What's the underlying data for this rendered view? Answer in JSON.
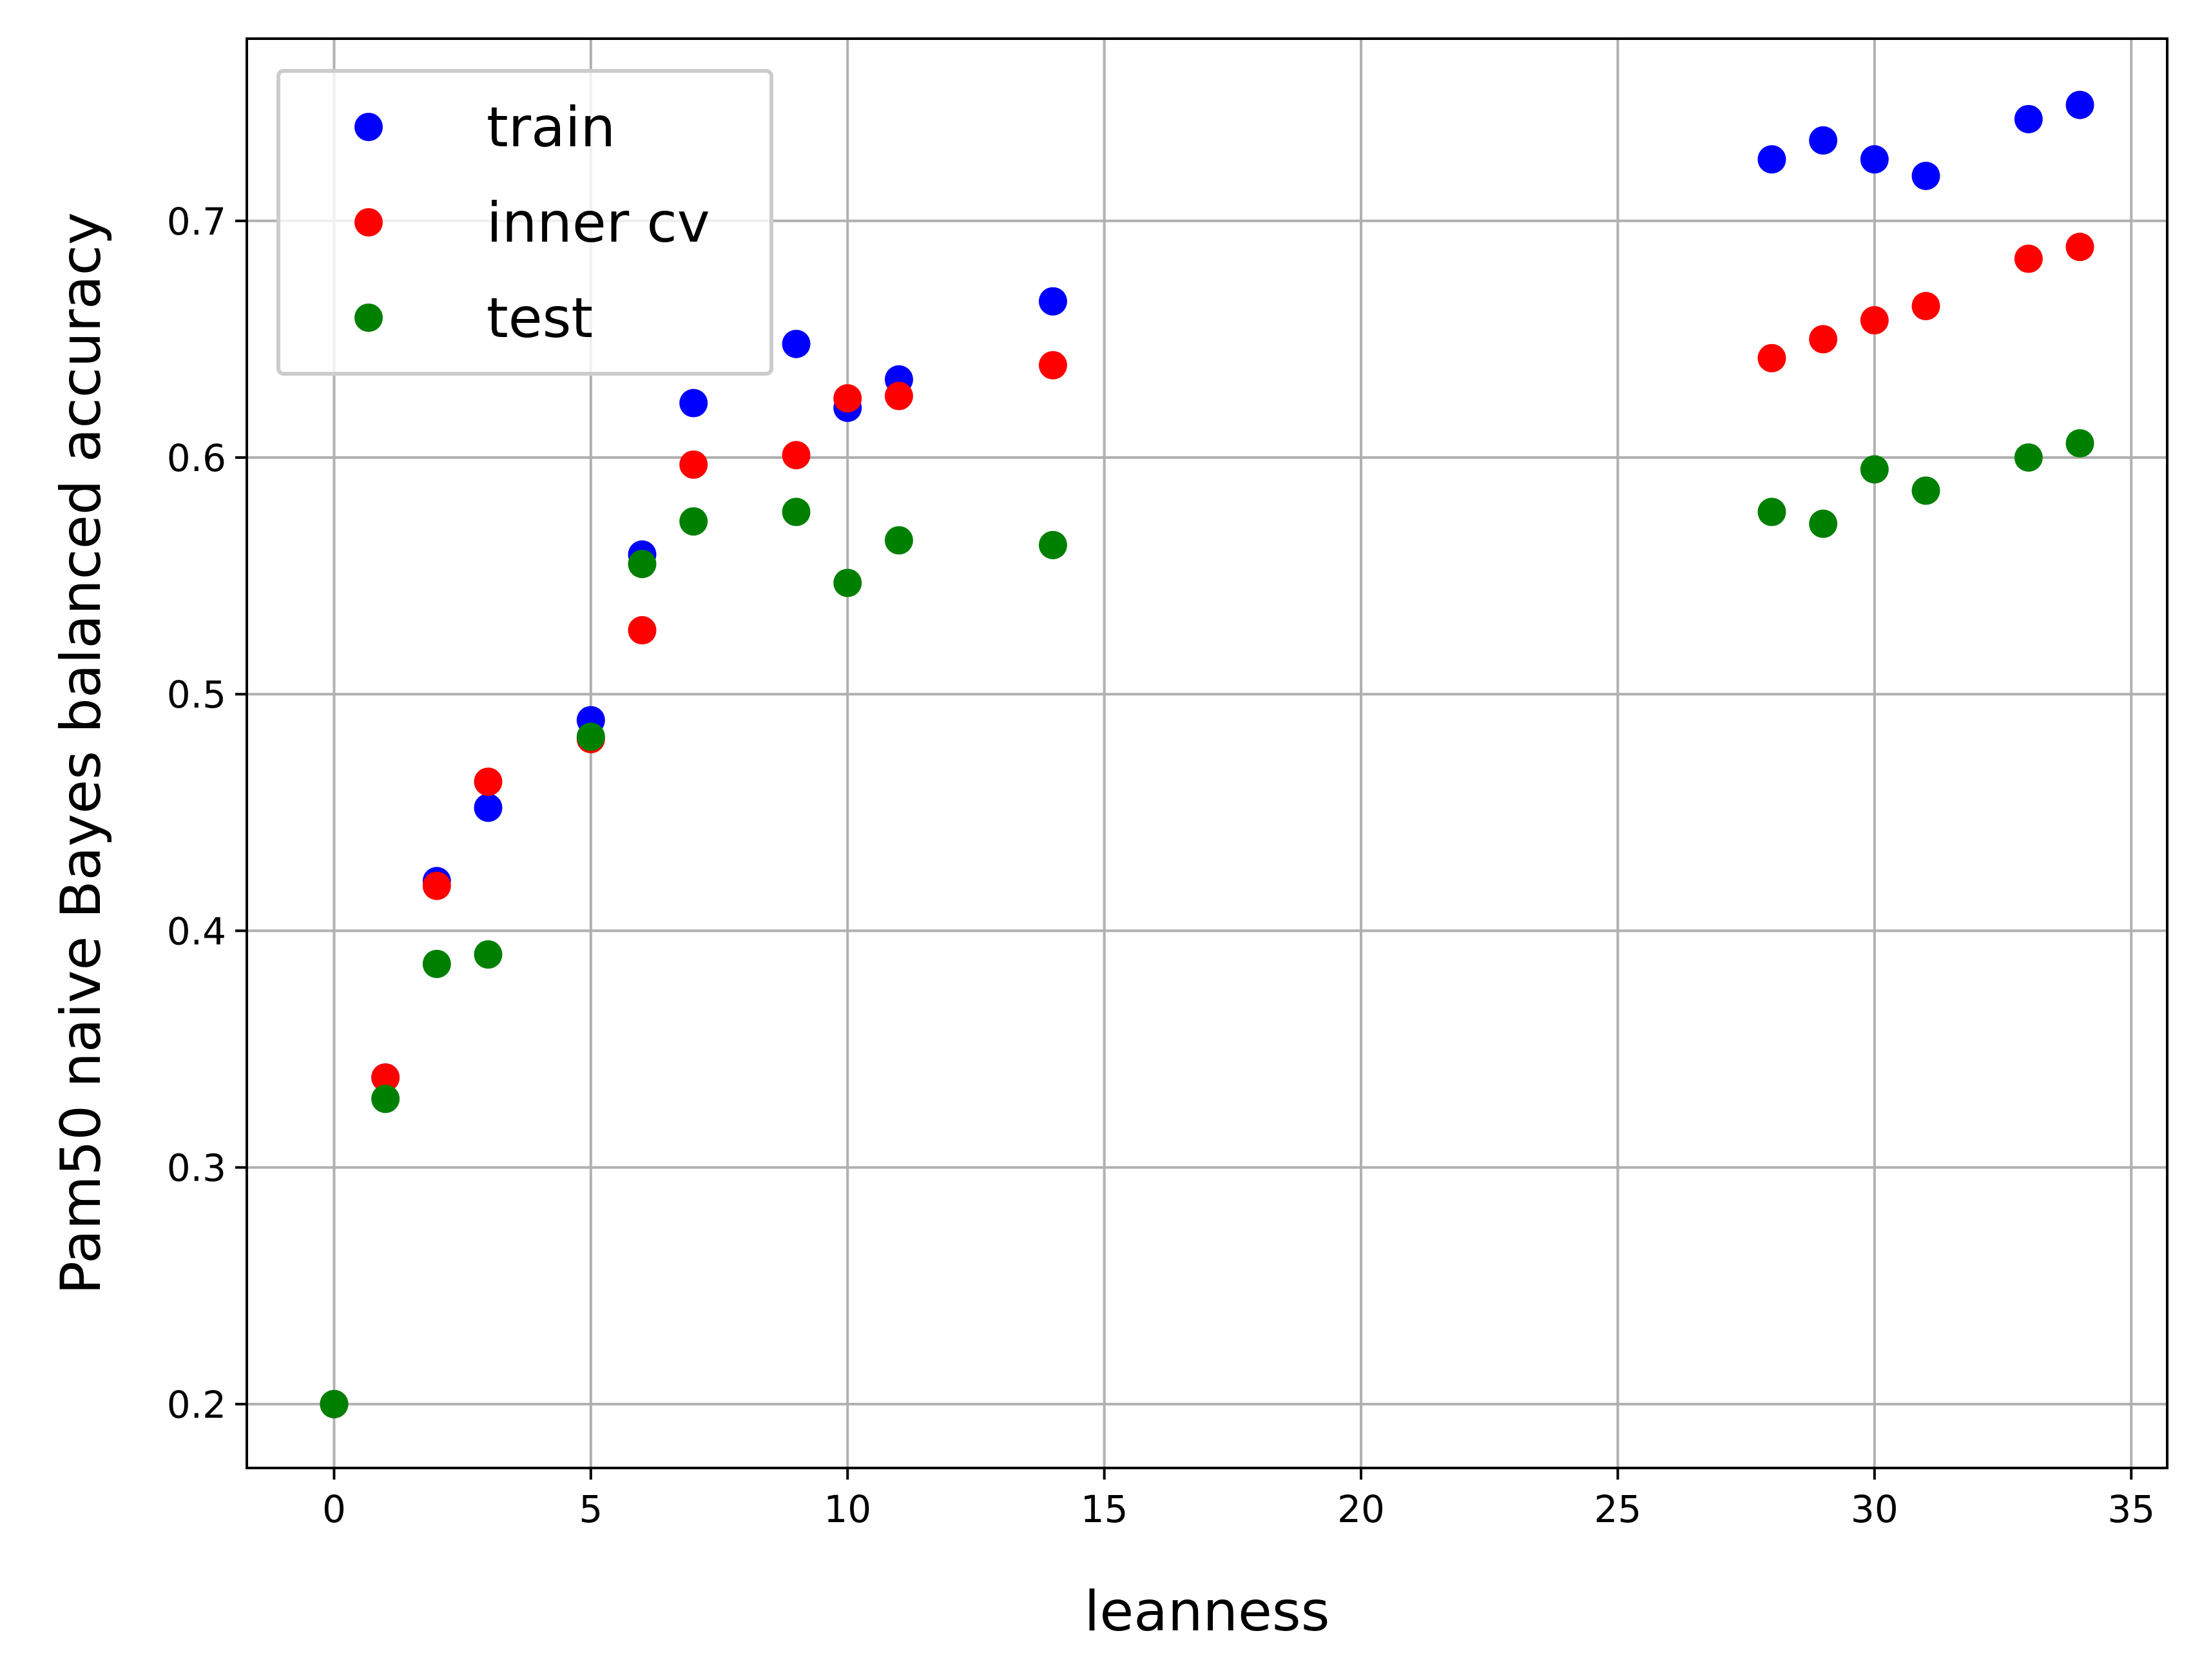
{
  "chart_data": {
    "type": "scatter",
    "title": "",
    "xlabel": "leanness",
    "ylabel": "Pam50 naive Bayes balanced accuracy",
    "xlim": [
      -1.7,
      35.7
    ],
    "ylim": [
      0.173,
      0.777
    ],
    "xticks": [
      0,
      5,
      10,
      15,
      20,
      25,
      30,
      35
    ],
    "yticks": [
      0.2,
      0.3,
      0.4,
      0.5,
      0.6,
      0.7
    ],
    "xtick_labels": [
      "0",
      "5",
      "10",
      "15",
      "20",
      "25",
      "30",
      "35"
    ],
    "ytick_labels": [
      "0.2",
      "0.3",
      "0.4",
      "0.5",
      "0.6",
      "0.7"
    ],
    "grid": true,
    "legend_position": "top-left",
    "series": [
      {
        "name": "train",
        "color": "#0000ff",
        "points": [
          [
            0,
            0.2
          ],
          [
            1,
            0.338
          ],
          [
            2,
            0.421
          ],
          [
            3,
            0.452
          ],
          [
            5,
            0.489
          ],
          [
            6,
            0.559
          ],
          [
            7,
            0.623
          ],
          [
            9,
            0.648
          ],
          [
            10,
            0.621
          ],
          [
            11,
            0.633
          ],
          [
            14,
            0.666
          ],
          [
            28,
            0.726
          ],
          [
            29,
            0.734
          ],
          [
            30,
            0.726
          ],
          [
            31,
            0.719
          ],
          [
            33,
            0.743
          ],
          [
            34,
            0.749
          ]
        ]
      },
      {
        "name": "inner cv",
        "color": "#ff0000",
        "points": [
          [
            0,
            0.2
          ],
          [
            1,
            0.338
          ],
          [
            2,
            0.419
          ],
          [
            3,
            0.463
          ],
          [
            5,
            0.481
          ],
          [
            6,
            0.527
          ],
          [
            7,
            0.597
          ],
          [
            9,
            0.601
          ],
          [
            10,
            0.625
          ],
          [
            11,
            0.626
          ],
          [
            14,
            0.639
          ],
          [
            28,
            0.642
          ],
          [
            29,
            0.65
          ],
          [
            30,
            0.658
          ],
          [
            31,
            0.664
          ],
          [
            33,
            0.684
          ],
          [
            34,
            0.689
          ]
        ]
      },
      {
        "name": "test",
        "color": "#008000",
        "points": [
          [
            0,
            0.2
          ],
          [
            1,
            0.329
          ],
          [
            2,
            0.386
          ],
          [
            3,
            0.39
          ],
          [
            5,
            0.482
          ],
          [
            6,
            0.555
          ],
          [
            7,
            0.573
          ],
          [
            9,
            0.577
          ],
          [
            10,
            0.547
          ],
          [
            11,
            0.565
          ],
          [
            14,
            0.563
          ],
          [
            28,
            0.577
          ],
          [
            29,
            0.572
          ],
          [
            30,
            0.595
          ],
          [
            31,
            0.586
          ],
          [
            33,
            0.6
          ],
          [
            34,
            0.606
          ]
        ]
      }
    ]
  }
}
